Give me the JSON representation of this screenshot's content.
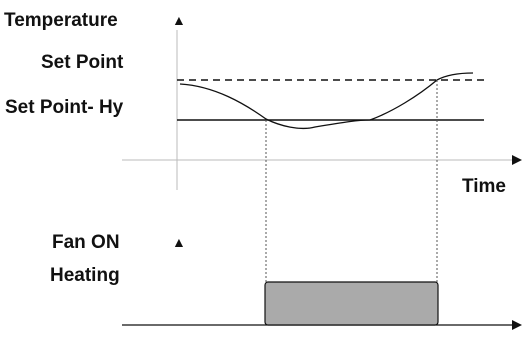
{
  "labels": {
    "temperature": "Temperature",
    "set_point": "Set Point",
    "set_point_hy": "Set Point- Hy",
    "time": "Time",
    "fan_on": "Fan ON",
    "heating": "Heating"
  },
  "colors": {
    "stroke": "#111111",
    "guide": "#555555",
    "heating_fill": "#aaaaaa",
    "light_axis": "#bbbbbb"
  }
}
